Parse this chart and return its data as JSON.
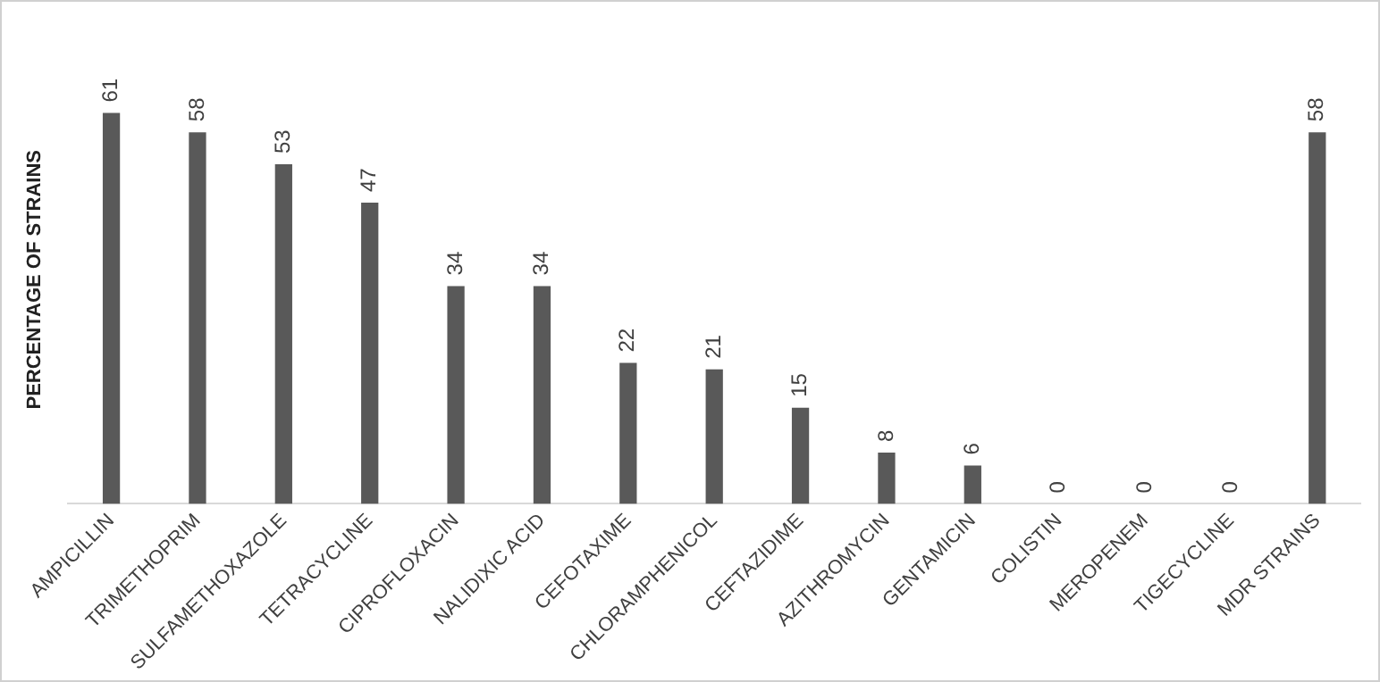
{
  "chart_data": {
    "type": "bar",
    "ylabel": "PERCENTAGE OF STRAINS",
    "categories": [
      "AMPICILLIN",
      "TRIMETHOPRIM",
      "SULFAMETHOXAZOLE",
      "TETRACYCLINE",
      "CIPROFLOXACIN",
      "NALIDIXIC ACID",
      "CEFOTAXIME",
      "CHLORAMPHENICOL",
      "CEFTAZIDIME",
      "AZITHROMYCIN",
      "GENTAMICIN",
      "COLISTIN",
      "MEROPENEM",
      "TIGECYCLINE",
      "MDR STRAINS"
    ],
    "values": [
      61,
      58,
      53,
      47,
      34,
      34,
      22,
      21,
      15,
      8,
      6,
      0,
      0,
      0,
      58
    ],
    "color": "#595959",
    "data_labels": true,
    "tick_labels": "x",
    "grid": false,
    "legend": false
  }
}
